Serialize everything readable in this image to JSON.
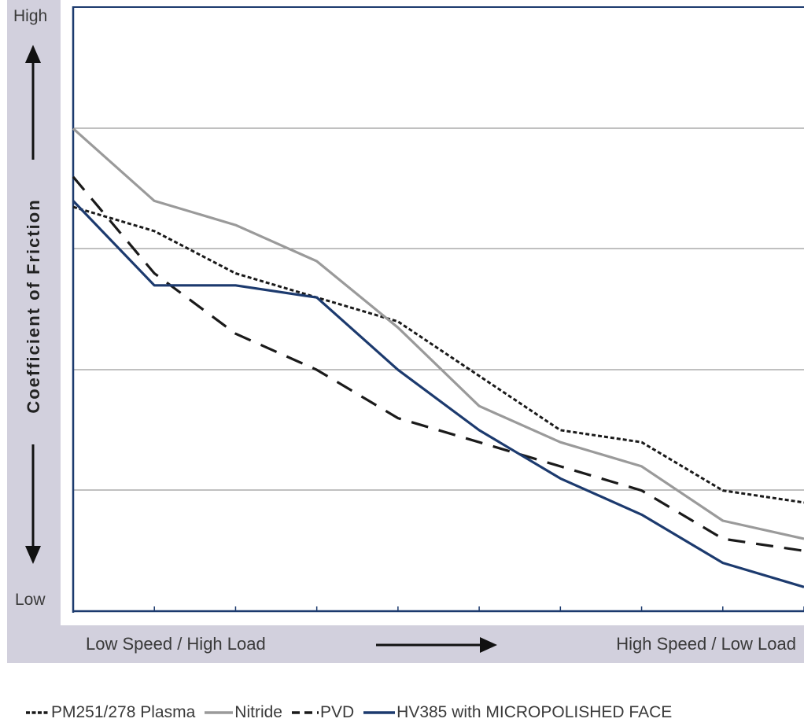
{
  "chart_data": {
    "type": "line",
    "title": "",
    "ylabel": "Coefficient of Friction",
    "y_high_label": "High",
    "y_low_label": "Low",
    "x_left_label": "Low Speed / High Load",
    "x_right_label": "High Speed / Low Load",
    "x": [
      0,
      1,
      2,
      3,
      4,
      5,
      6,
      7,
      8,
      9
    ],
    "xlim": [
      0,
      9
    ],
    "ylim": [
      0,
      100
    ],
    "grid": true,
    "legend_position": "bottom",
    "series": [
      {
        "name": "PM251/278 Plasma",
        "style": "dotted",
        "color": "#1a1a1a",
        "values": [
          67,
          63,
          56,
          52,
          48,
          39,
          30,
          28,
          20,
          18
        ]
      },
      {
        "name": "Nitride",
        "style": "solid",
        "color": "#9a9a9a",
        "values": [
          80,
          68,
          64,
          58,
          47,
          34,
          28,
          24,
          15,
          12
        ]
      },
      {
        "name": "PVD",
        "style": "dashed",
        "color": "#1a1a1a",
        "values": [
          72,
          56,
          46,
          40,
          32,
          28,
          24,
          20,
          12,
          10
        ]
      },
      {
        "name": "HV385 with MICROPOLISHED FACE",
        "style": "solid",
        "color": "#1c3a6e",
        "values": [
          68,
          54,
          54,
          52,
          40,
          30,
          22,
          16,
          8,
          4
        ]
      }
    ]
  }
}
